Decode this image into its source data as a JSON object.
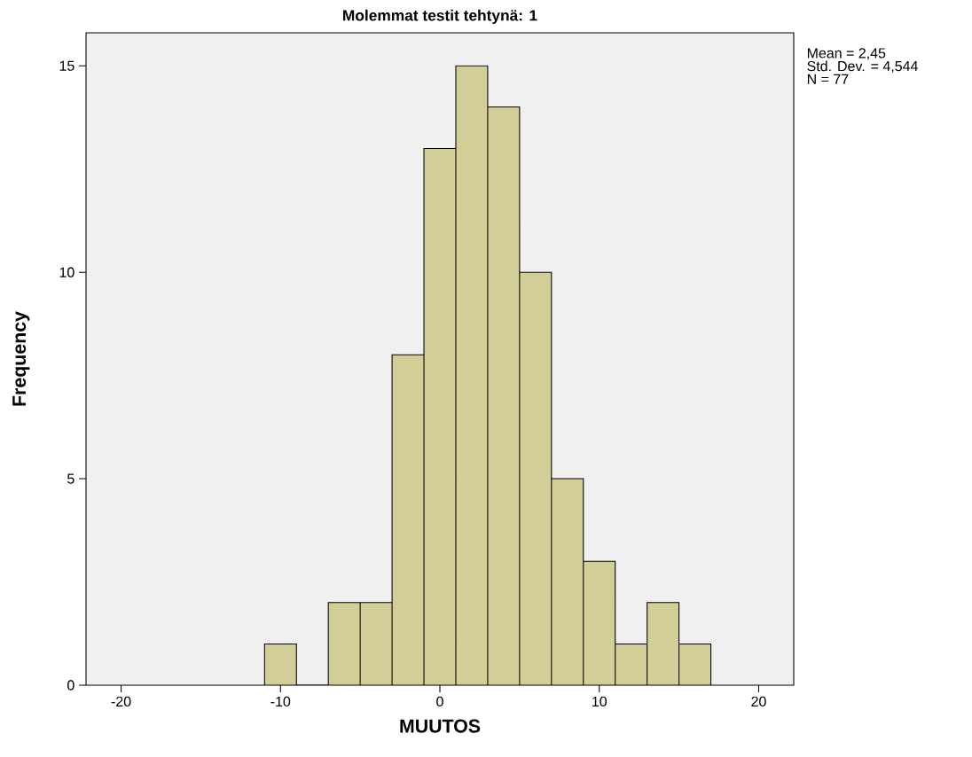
{
  "chart_data": {
    "type": "histogram",
    "title": "Molemmat testit tehtynä: 1",
    "xlabel": "MUUTOS",
    "ylabel": "Frequency",
    "bins": [
      -11,
      -9,
      -7,
      -5,
      -3,
      -1,
      1,
      3,
      5,
      7,
      9,
      11,
      13,
      15,
      17
    ],
    "values": [
      1,
      0,
      2,
      2,
      8,
      13,
      15,
      14,
      10,
      5,
      3,
      1,
      2,
      1
    ],
    "color": "#d3ce98",
    "xlim": [
      -22.2,
      22.2
    ],
    "ylim": [
      0,
      15.8
    ],
    "xticks": [
      -20,
      -10,
      0,
      10,
      20
    ],
    "yticks": [
      0,
      5,
      10,
      15
    ],
    "annotations": [
      "Mean = 2,45",
      "Std. Dev. = 4,544",
      "N = 77"
    ]
  }
}
